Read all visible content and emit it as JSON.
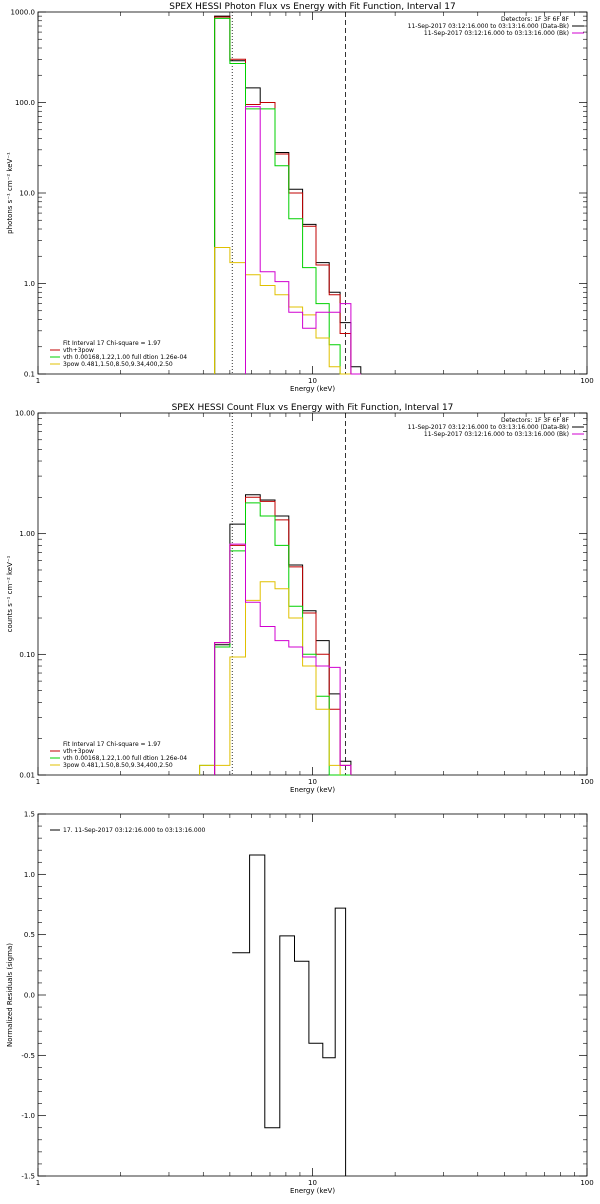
{
  "colors": {
    "black": "#000000",
    "red": "#c00000",
    "green": "#00d000",
    "yellow": "#e0c000",
    "magenta": "#d000d0",
    "darkred": "#800000",
    "background": "#ffffff"
  },
  "chart_data": [
    {
      "type": "line",
      "title": "SPEX HESSI Photon Flux vs Energy with Fit Function, Interval 17",
      "xlabel": "Energy (keV)",
      "ylabel": "photons s⁻¹ cm⁻² keV⁻¹",
      "xscale": "log",
      "yscale": "log",
      "xlim": [
        1,
        100
      ],
      "ylim": [
        0.1,
        1000
      ],
      "xticks": [
        1,
        10,
        100
      ],
      "xtick_labels": [
        "1",
        "10",
        "100"
      ],
      "yticks": [
        0.1,
        1,
        10,
        100,
        1000
      ],
      "ytick_labels": [
        "0.1",
        "1.0",
        "10.0",
        "100.0",
        "1000.0"
      ],
      "header_lines": [
        "Detectors: 1F 3F 6F 8F",
        "11-Sep-2017 03:12:16.000 to 03:13:16.000 (Data-Bk)",
        "11-Sep-2017 03:12:16.000 to 03:13:16.000 (Bk)"
      ],
      "header_keys": [
        "",
        "black",
        "magenta"
      ],
      "legend_lines": [
        "Fit Interval 17   Chi-square = 1.97",
        "vth+3pow",
        "vth 0.00168,1.22,1.00  full dtion 1.26e-04",
        "3pow 0.481,1.50,8.50,9.34,400,2.50"
      ],
      "legend_keys": [
        "",
        "red",
        "green",
        "yellow"
      ],
      "vlines": [
        {
          "x": 5.1,
          "style": "dotted"
        },
        {
          "x": 13.2,
          "style": "dashed"
        }
      ],
      "edges": [
        3.88,
        4.4,
        5.0,
        5.7,
        6.45,
        7.3,
        8.2,
        9.2,
        10.3,
        11.5,
        12.6,
        13.8,
        15.0
      ],
      "series": [
        {
          "color_key": "black",
          "values": [
            null,
            900,
            290,
            145,
            100,
            28,
            11,
            4.5,
            1.7,
            0.8,
            0.37,
            0.12
          ]
        },
        {
          "color_key": "red",
          "values": [
            null,
            880,
            300,
            95,
            100,
            27,
            10,
            4.3,
            1.6,
            0.75,
            0.28,
            0.1
          ]
        },
        {
          "color_key": "green",
          "values": [
            null,
            850,
            270,
            85,
            85,
            20,
            5.2,
            1.5,
            0.6,
            0.21,
            0.1,
            0.1
          ]
        },
        {
          "color_key": "yellow",
          "values": [
            null,
            2.5,
            1.7,
            1.25,
            0.95,
            0.75,
            0.55,
            0.45,
            0.25,
            0.12,
            0.1,
            0.1
          ]
        },
        {
          "color_key": "magenta",
          "values": [
            null,
            null,
            null,
            90,
            1.35,
            1.05,
            0.48,
            0.32,
            0.48,
            0.48,
            0.6,
            0.1
          ]
        }
      ]
    },
    {
      "type": "line",
      "title": "SPEX HESSI Count Flux vs Energy with Fit Function, Interval 17",
      "xlabel": "Energy (keV)",
      "ylabel": "counts s⁻¹ cm⁻² keV⁻¹",
      "xscale": "log",
      "yscale": "log",
      "xlim": [
        1,
        100
      ],
      "ylim": [
        0.01,
        10
      ],
      "xticks": [
        1,
        10,
        100
      ],
      "xtick_labels": [
        "1",
        "10",
        "100"
      ],
      "yticks": [
        0.01,
        0.1,
        1,
        10
      ],
      "ytick_labels": [
        "0.01",
        "0.10",
        "1.00",
        "10.00"
      ],
      "header_lines": [
        "Detectors: 1F 3F 6F 8F",
        "11-Sep-2017 03:12:16.000 to 03:13:16.000 (Data-Bk)",
        "11-Sep-2017 03:12:16.000 to 03:13:16.000 (Bk)"
      ],
      "header_keys": [
        "",
        "black",
        "magenta"
      ],
      "legend_lines": [
        "Fit Interval 17   Chi-square = 1.97",
        "vth+3pow",
        "vth 0.00168,1.22,1.00  full dtion 1.26e-04",
        "3pow 0.481,1.50,8.50,9.34,400,2.50"
      ],
      "legend_keys": [
        "",
        "red",
        "green",
        "yellow"
      ],
      "vlines": [
        {
          "x": 5.1,
          "style": "dotted"
        },
        {
          "x": 13.2,
          "style": "dashed"
        }
      ],
      "edges": [
        3.88,
        4.4,
        5.0,
        5.7,
        6.45,
        7.3,
        8.2,
        9.2,
        10.3,
        11.5,
        12.6,
        13.8,
        15.0
      ],
      "series": [
        {
          "color_key": "black",
          "values": [
            null,
            0.12,
            1.2,
            2.1,
            1.9,
            1.4,
            0.55,
            0.23,
            0.13,
            0.047,
            0.013,
            null
          ]
        },
        {
          "color_key": "red",
          "values": [
            null,
            0.125,
            0.8,
            2.0,
            1.85,
            1.3,
            0.53,
            0.22,
            0.1,
            0.035,
            0.012,
            null
          ]
        },
        {
          "color_key": "green",
          "values": [
            0.012,
            0.115,
            0.72,
            1.8,
            1.4,
            0.8,
            0.25,
            0.1,
            0.045,
            0.01,
            0.01,
            null
          ]
        },
        {
          "color_key": "yellow",
          "values": [
            0.012,
            0.012,
            0.095,
            0.28,
            0.4,
            0.35,
            0.2,
            0.08,
            0.035,
            0.012,
            null,
            null
          ]
        },
        {
          "color_key": "magenta",
          "values": [
            null,
            0.125,
            0.82,
            0.27,
            0.17,
            0.13,
            0.115,
            0.095,
            0.08,
            0.078,
            0.012,
            null
          ]
        }
      ]
    },
    {
      "type": "line",
      "title": "",
      "xlabel": "Energy (keV)",
      "ylabel": "Normalized Residuals (sigma)",
      "xscale": "log",
      "yscale": "linear",
      "xlim": [
        1,
        100
      ],
      "ylim": [
        -1.5,
        1.5
      ],
      "xticks": [
        1,
        10,
        100
      ],
      "xtick_labels": [
        "1",
        "10",
        "100"
      ],
      "yticks": [
        -1.5,
        -1.0,
        -0.5,
        0.0,
        0.5,
        1.0,
        1.5
      ],
      "ytick_labels": [
        "-1.5",
        "-1.0",
        "-0.5",
        "0.0",
        "0.5",
        "1.0",
        "1.5"
      ],
      "legend_lines": [
        "17. 11-Sep-2017 03:12:16.000 to 03:13:16.000"
      ],
      "legend_keys": [
        "black"
      ],
      "edges": [
        5.1,
        5.9,
        6.7,
        7.6,
        8.6,
        9.7,
        10.9,
        12.1,
        13.2
      ],
      "series": [
        {
          "color_key": "black",
          "values": [
            0.35,
            1.16,
            -1.1,
            0.49,
            0.28,
            -0.4,
            -0.52,
            0.72
          ]
        }
      ]
    }
  ]
}
